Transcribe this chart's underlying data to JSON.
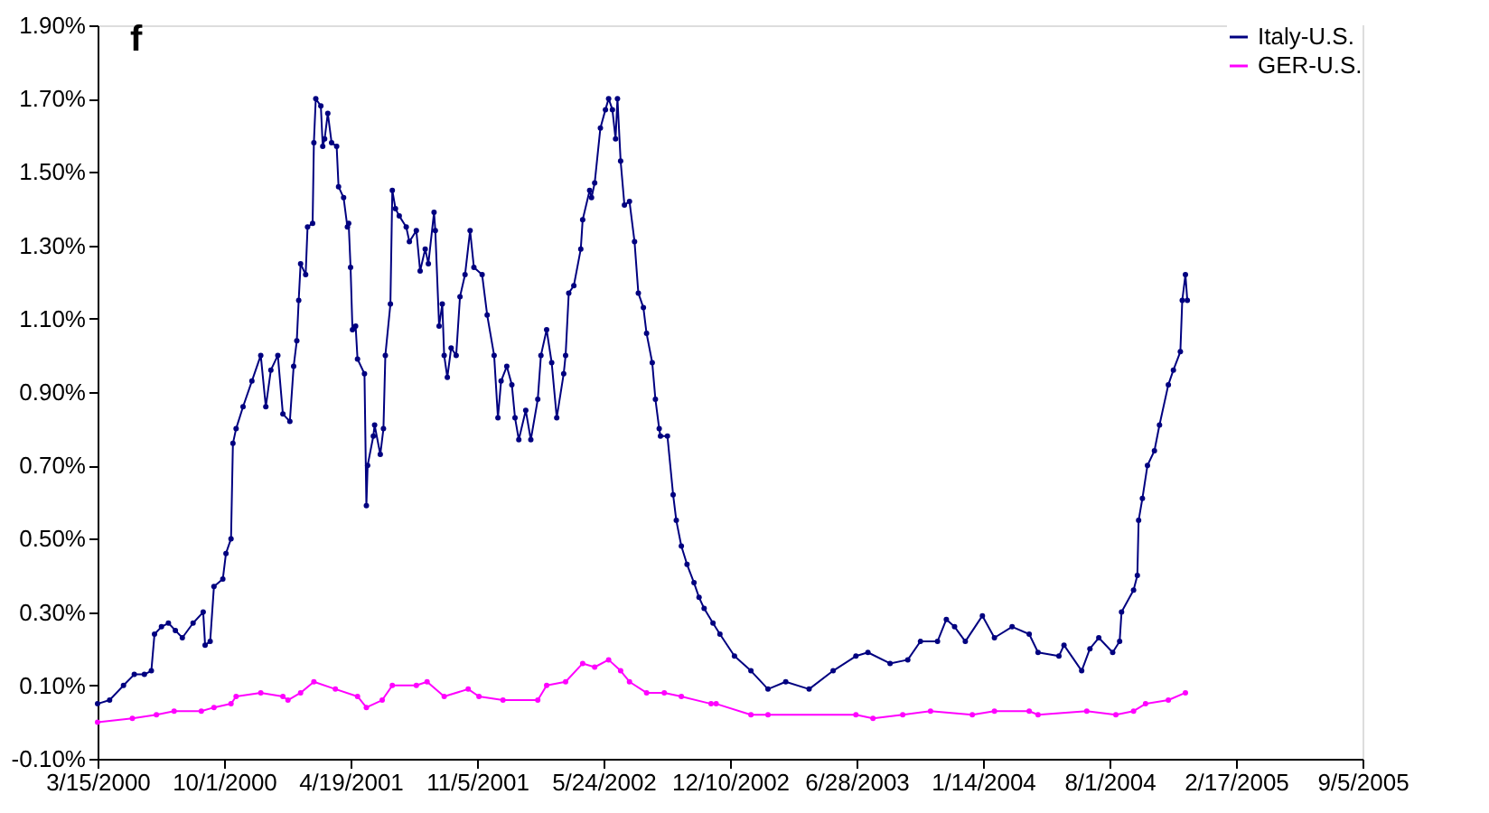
{
  "chart_data": {
    "type": "line",
    "title": "f",
    "xlim": [
      "2000-03-15",
      "2005-09-05"
    ],
    "xticks": [
      {
        "value": "2000-03-15",
        "label": "3/15/2000"
      },
      {
        "value": "2000-10-01",
        "label": "10/1/2000"
      },
      {
        "value": "2001-04-19",
        "label": "4/19/2001"
      },
      {
        "value": "2001-11-05",
        "label": "11/5/2001"
      },
      {
        "value": "2002-05-24",
        "label": "5/24/2002"
      },
      {
        "value": "2002-12-10",
        "label": "12/10/2002"
      },
      {
        "value": "2003-06-28",
        "label": "6/28/2003"
      },
      {
        "value": "2004-01-14",
        "label": "1/14/2004"
      },
      {
        "value": "2004-08-01",
        "label": "8/1/2004"
      },
      {
        "value": "2005-02-17",
        "label": "2/17/2005"
      },
      {
        "value": "2005-09-05",
        "label": "9/5/2005"
      }
    ],
    "ylim": [
      -0.1,
      1.9
    ],
    "yticks": [
      {
        "value": -0.1,
        "label": "-0.10%"
      },
      {
        "value": 0.1,
        "label": "0.10%"
      },
      {
        "value": 0.3,
        "label": "0.30%"
      },
      {
        "value": 0.5,
        "label": "0.50%"
      },
      {
        "value": 0.7,
        "label": "0.70%"
      },
      {
        "value": 0.9,
        "label": "0.90%"
      },
      {
        "value": 1.1,
        "label": "1.10%"
      },
      {
        "value": 1.3,
        "label": "1.30%"
      },
      {
        "value": 1.5,
        "label": "1.50%"
      },
      {
        "value": 1.7,
        "label": "1.70%"
      },
      {
        "value": 1.9,
        "label": "1.90%"
      }
    ],
    "grid": false,
    "legend": "top right",
    "marker": "circle",
    "line_style": "solid",
    "series": [
      {
        "name": "Italy-U.S.",
        "color": "#000080",
        "x": [
          "2000-03-15",
          "2000-04-03",
          "2000-04-25",
          "2000-05-12",
          "2000-05-28",
          "2000-06-08",
          "2000-06-13",
          "2000-06-24",
          "2000-07-05",
          "2000-07-16",
          "2000-07-27",
          "2000-08-13",
          "2000-08-29",
          "2000-09-01",
          "2000-09-09",
          "2000-09-15",
          "2000-09-29",
          "2000-10-04",
          "2000-10-12",
          "2000-10-15",
          "2000-10-20",
          "2000-10-31",
          "2000-11-14",
          "2000-11-28",
          "2000-12-06",
          "2000-12-14",
          "2000-12-25",
          "2001-01-02",
          "2001-01-13",
          "2001-01-19",
          "2001-01-24",
          "2001-01-27",
          "2001-01-30",
          "2001-02-07",
          "2001-02-10",
          "2001-02-18",
          "2001-02-20",
          "2001-02-23",
          "2001-03-03",
          "2001-03-06",
          "2001-03-09",
          "2001-03-14",
          "2001-03-20",
          "2001-03-28",
          "2001-03-31",
          "2001-04-08",
          "2001-04-14",
          "2001-04-16",
          "2001-04-19",
          "2001-04-22",
          "2001-04-27",
          "2001-04-30",
          "2001-05-11",
          "2001-05-14",
          "2001-05-16",
          "2001-05-25",
          "2001-05-27",
          "2001-06-05",
          "2001-06-10",
          "2001-06-13",
          "2001-06-21",
          "2001-06-24",
          "2001-06-29",
          "2001-07-05",
          "2001-07-16",
          "2001-07-21",
          "2001-08-01",
          "2001-08-07",
          "2001-08-15",
          "2001-08-20",
          "2001-08-29",
          "2001-08-31",
          "2001-09-06",
          "2001-09-11",
          "2001-09-14",
          "2001-09-19",
          "2001-09-25",
          "2001-10-03",
          "2001-10-09",
          "2001-10-17",
          "2001-10-25",
          "2001-10-31",
          "2001-11-13",
          "2001-11-21",
          "2001-12-02",
          "2001-12-08",
          "2001-12-13",
          "2001-12-22",
          "2001-12-30",
          "2002-01-04",
          "2002-01-10",
          "2002-01-21",
          "2002-01-29",
          "2002-02-09",
          "2002-02-14",
          "2002-02-23",
          "2002-03-03",
          "2002-03-11",
          "2002-03-22",
          "2002-03-25",
          "2002-03-30",
          "2002-04-07",
          "2002-04-18",
          "2002-04-21",
          "2002-05-02",
          "2002-05-05",
          "2002-05-10",
          "2002-05-19",
          "2002-05-27",
          "2002-06-01",
          "2002-06-07",
          "2002-06-12",
          "2002-06-15",
          "2002-06-20",
          "2002-06-26",
          "2002-07-04",
          "2002-07-12",
          "2002-07-18",
          "2002-07-26",
          "2002-07-31",
          "2002-08-09",
          "2002-08-14",
          "2002-08-20",
          "2002-08-22",
          "2002-09-02",
          "2002-09-11",
          "2002-09-16",
          "2002-09-24",
          "2002-10-03",
          "2002-10-14",
          "2002-10-22",
          "2002-10-30",
          "2002-11-13",
          "2002-11-24",
          "2002-12-17",
          "2003-01-12",
          "2003-02-08",
          "2003-03-08",
          "2003-04-14",
          "2003-05-22",
          "2003-06-27",
          "2003-07-16",
          "2003-08-20",
          "2003-09-17",
          "2003-10-07",
          "2003-11-03",
          "2003-11-17",
          "2003-11-30",
          "2003-12-17",
          "2004-01-13",
          "2004-02-01",
          "2004-02-29",
          "2004-03-27",
          "2004-04-10",
          "2004-05-13",
          "2004-05-21",
          "2004-06-18",
          "2004-07-01",
          "2004-07-15",
          "2004-08-06",
          "2004-08-17",
          "2004-08-20",
          "2004-09-08",
          "2004-09-14",
          "2004-09-16",
          "2004-09-22",
          "2004-09-30",
          "2004-10-11",
          "2004-10-19",
          "2004-11-02",
          "2004-11-10",
          "2004-11-21",
          "2004-11-24",
          "2004-11-29",
          "2004-12-02"
        ],
        "values": [
          0.05,
          0.06,
          0.1,
          0.13,
          0.13,
          0.14,
          0.24,
          0.26,
          0.27,
          0.25,
          0.23,
          0.27,
          0.3,
          0.21,
          0.22,
          0.37,
          0.39,
          0.46,
          0.5,
          0.76,
          0.8,
          0.86,
          0.93,
          1.0,
          0.86,
          0.96,
          1.0,
          0.84,
          0.82,
          0.97,
          1.04,
          1.15,
          1.25,
          1.22,
          1.35,
          1.36,
          1.58,
          1.7,
          1.68,
          1.57,
          1.59,
          1.66,
          1.58,
          1.57,
          1.46,
          1.43,
          1.35,
          1.36,
          1.24,
          1.07,
          1.08,
          0.99,
          0.95,
          0.59,
          0.7,
          0.78,
          0.81,
          0.73,
          0.8,
          1.0,
          1.14,
          1.45,
          1.4,
          1.38,
          1.35,
          1.31,
          1.34,
          1.23,
          1.29,
          1.25,
          1.39,
          1.34,
          1.08,
          1.14,
          1.0,
          0.94,
          1.02,
          1.0,
          1.16,
          1.22,
          1.34,
          1.24,
          1.22,
          1.11,
          1.0,
          0.83,
          0.93,
          0.97,
          0.92,
          0.83,
          0.77,
          0.85,
          0.77,
          0.88,
          1.0,
          1.07,
          0.98,
          0.83,
          0.95,
          1.0,
          1.17,
          1.19,
          1.29,
          1.37,
          1.45,
          1.43,
          1.47,
          1.62,
          1.67,
          1.7,
          1.67,
          1.59,
          1.7,
          1.53,
          1.41,
          1.42,
          1.31,
          1.17,
          1.13,
          1.06,
          0.98,
          0.88,
          0.8,
          0.78,
          0.78,
          0.62,
          0.55,
          0.48,
          0.43,
          0.38,
          0.34,
          0.31,
          0.27,
          0.24,
          0.18,
          0.14,
          0.09,
          0.11,
          0.09,
          0.14,
          0.18,
          0.19,
          0.16,
          0.17,
          0.22,
          0.22,
          0.28,
          0.26,
          0.22,
          0.29,
          0.23,
          0.26,
          0.24,
          0.19,
          0.18,
          0.21,
          0.14,
          0.2,
          0.23,
          0.19,
          0.22,
          0.3,
          0.36,
          0.4,
          0.55,
          0.61,
          0.7,
          0.74,
          0.81,
          0.92,
          0.96,
          1.01,
          1.15,
          1.22,
          1.15
        ]
      },
      {
        "name": "GER-U.S.",
        "color": "#ff00ff",
        "x": [
          "2000-03-15",
          "2000-05-09",
          "2000-06-16",
          "2000-07-14",
          "2000-08-26",
          "2000-09-15",
          "2000-10-12",
          "2000-10-20",
          "2000-11-28",
          "2001-01-02",
          "2001-01-10",
          "2001-01-30",
          "2001-02-20",
          "2001-03-26",
          "2001-04-30",
          "2001-05-14",
          "2001-06-08",
          "2001-06-24",
          "2001-08-01",
          "2001-08-18",
          "2001-09-14",
          "2001-10-22",
          "2001-11-08",
          "2001-12-16",
          "2002-02-09",
          "2002-02-23",
          "2002-03-25",
          "2002-04-21",
          "2002-05-10",
          "2002-06-01",
          "2002-06-20",
          "2002-07-04",
          "2002-07-31",
          "2002-08-28",
          "2002-09-24",
          "2002-11-10",
          "2002-11-18",
          "2003-01-12",
          "2003-02-08",
          "2003-06-27",
          "2003-07-24",
          "2003-09-09",
          "2003-10-23",
          "2003-12-28",
          "2004-02-01",
          "2004-03-27",
          "2004-04-10",
          "2004-06-26",
          "2004-08-11",
          "2004-09-08",
          "2004-09-27",
          "2004-11-02",
          "2004-11-29"
        ],
        "values": [
          0.0,
          0.01,
          0.02,
          0.03,
          0.03,
          0.04,
          0.05,
          0.07,
          0.08,
          0.07,
          0.06,
          0.08,
          0.11,
          0.09,
          0.07,
          0.04,
          0.06,
          0.1,
          0.1,
          0.11,
          0.07,
          0.09,
          0.07,
          0.06,
          0.06,
          0.1,
          0.11,
          0.16,
          0.15,
          0.17,
          0.14,
          0.11,
          0.08,
          0.08,
          0.07,
          0.05,
          0.05,
          0.02,
          0.02,
          0.02,
          0.01,
          0.02,
          0.03,
          0.02,
          0.03,
          0.03,
          0.02,
          0.03,
          0.02,
          0.03,
          0.05,
          0.06,
          0.08
        ]
      }
    ]
  }
}
